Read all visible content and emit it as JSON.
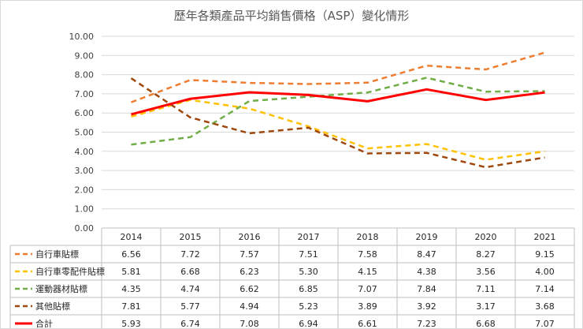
{
  "chart_data": {
    "type": "line",
    "title": "歷年各類產品平均銷售價格（ASP）變化情形",
    "xlabel": "",
    "ylabel": "",
    "ylim": [
      0,
      10
    ],
    "yticks": [
      "0.00",
      "1.00",
      "2.00",
      "3.00",
      "4.00",
      "5.00",
      "6.00",
      "7.00",
      "8.00",
      "9.00",
      "10.00"
    ],
    "grid": true,
    "legend": "data-table",
    "categories": [
      "2014",
      "2015",
      "2016",
      "2017",
      "2018",
      "2019",
      "2020",
      "2021"
    ],
    "series": [
      {
        "name": "自行車貼標",
        "color": "#ED7D31",
        "dashed": true,
        "values": [
          6.56,
          7.72,
          7.57,
          7.51,
          7.58,
          8.47,
          8.27,
          9.15
        ],
        "labels": [
          "6.56",
          "7.72",
          "7.57",
          "7.51",
          "7.58",
          "8.47",
          "8.27",
          "9.15"
        ]
      },
      {
        "name": "自行車零配件貼標",
        "color": "#FFC000",
        "dashed": true,
        "values": [
          5.81,
          6.68,
          6.23,
          5.3,
          4.15,
          4.38,
          3.56,
          4.0
        ],
        "labels": [
          "5.81",
          "6.68",
          "6.23",
          "5.30",
          "4.15",
          "4.38",
          "3.56",
          "4.00"
        ]
      },
      {
        "name": "運動器材貼標",
        "color": "#70AD47",
        "dashed": true,
        "values": [
          4.35,
          4.74,
          6.62,
          6.85,
          7.07,
          7.84,
          7.11,
          7.14
        ],
        "labels": [
          "4.35",
          "4.74",
          "6.62",
          "6.85",
          "7.07",
          "7.84",
          "7.11",
          "7.14"
        ]
      },
      {
        "name": "其他貼標",
        "color": "#9E480E",
        "dashed": true,
        "values": [
          7.81,
          5.77,
          4.94,
          5.23,
          3.89,
          3.92,
          3.17,
          3.68
        ],
        "labels": [
          "7.81",
          "5.77",
          "4.94",
          "5.23",
          "3.89",
          "3.92",
          "3.17",
          "3.68"
        ]
      },
      {
        "name": "合計",
        "color": "#FF0000",
        "dashed": false,
        "values": [
          5.93,
          6.74,
          7.08,
          6.94,
          6.61,
          7.23,
          6.68,
          7.07
        ],
        "labels": [
          "5.93",
          "6.74",
          "7.08",
          "6.94",
          "6.61",
          "7.23",
          "6.68",
          "7.07"
        ]
      }
    ]
  }
}
